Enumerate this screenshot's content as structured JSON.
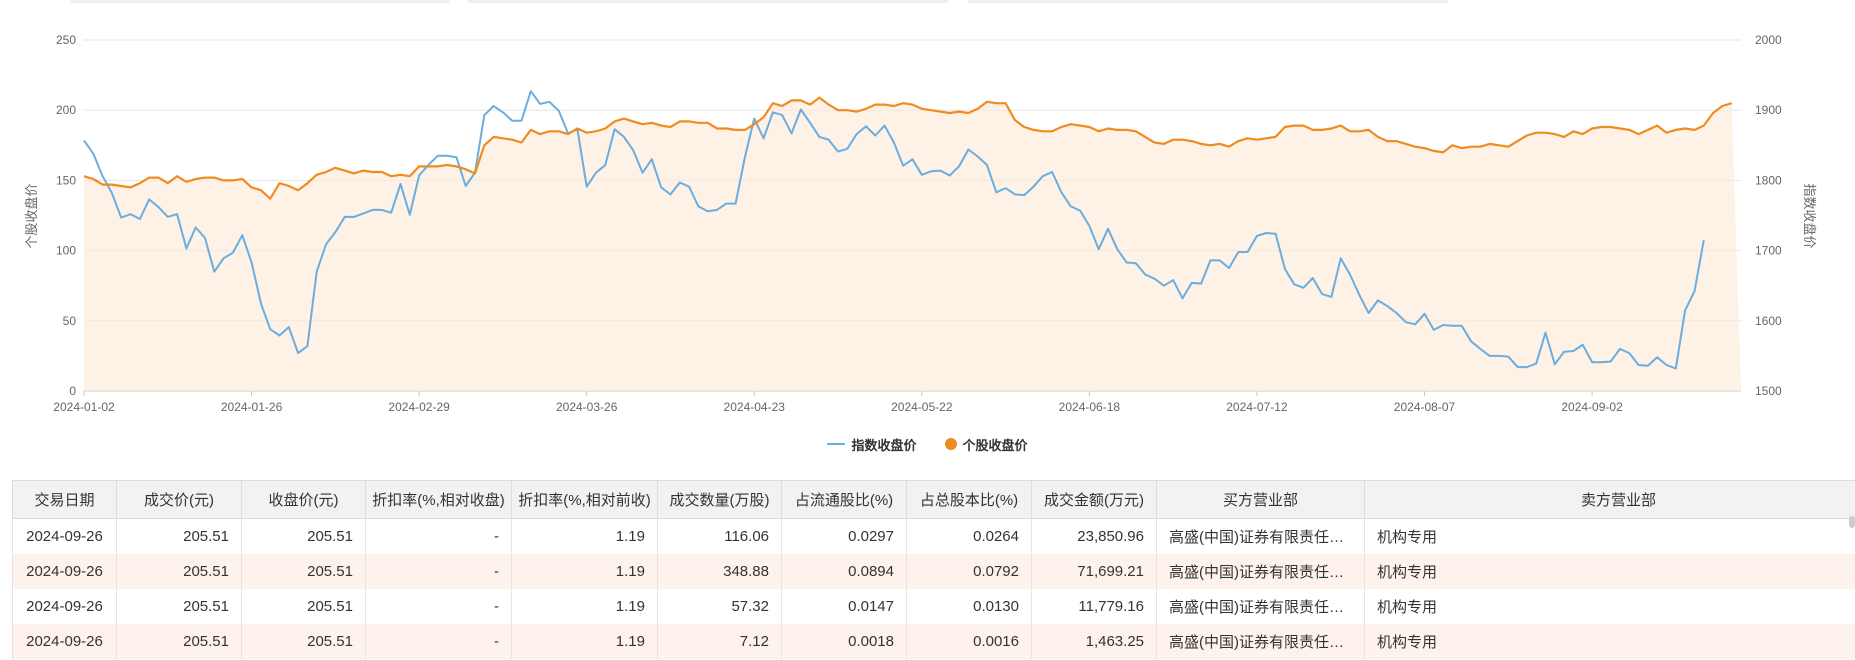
{
  "chart_data": {
    "type": "line",
    "x_dates": [
      "2024-01-02",
      "2024-01-03",
      "2024-01-04",
      "2024-01-05",
      "2024-01-08",
      "2024-01-09",
      "2024-01-10",
      "2024-01-11",
      "2024-01-12",
      "2024-01-15",
      "2024-01-16",
      "2024-01-17",
      "2024-01-18",
      "2024-01-19",
      "2024-01-22",
      "2024-01-23",
      "2024-01-24",
      "2024-01-25",
      "2024-01-26",
      "2024-01-29",
      "2024-01-30",
      "2024-01-31",
      "2024-02-01",
      "2024-02-02",
      "2024-02-05",
      "2024-02-06",
      "2024-02-07",
      "2024-02-08",
      "2024-02-19",
      "2024-02-20",
      "2024-02-21",
      "2024-02-22",
      "2024-02-23",
      "2024-02-26",
      "2024-02-27",
      "2024-02-28",
      "2024-02-29",
      "2024-03-01",
      "2024-03-04",
      "2024-03-05",
      "2024-03-06",
      "2024-03-07",
      "2024-03-08",
      "2024-03-11",
      "2024-03-12",
      "2024-03-13",
      "2024-03-14",
      "2024-03-15",
      "2024-03-18",
      "2024-03-19",
      "2024-03-20",
      "2024-03-21",
      "2024-03-22",
      "2024-03-25",
      "2024-03-26",
      "2024-03-27",
      "2024-03-28",
      "2024-03-29",
      "2024-04-01",
      "2024-04-02",
      "2024-04-03",
      "2024-04-08",
      "2024-04-09",
      "2024-04-10",
      "2024-04-11",
      "2024-04-12",
      "2024-04-15",
      "2024-04-16",
      "2024-04-17",
      "2024-04-18",
      "2024-04-19",
      "2024-04-22",
      "2024-04-23",
      "2024-04-24",
      "2024-04-25",
      "2024-04-26",
      "2024-04-29",
      "2024-04-30",
      "2024-05-06",
      "2024-05-07",
      "2024-05-08",
      "2024-05-09",
      "2024-05-10",
      "2024-05-13",
      "2024-05-14",
      "2024-05-15",
      "2024-05-16",
      "2024-05-17",
      "2024-05-20",
      "2024-05-21",
      "2024-05-22",
      "2024-05-23",
      "2024-05-24",
      "2024-05-27",
      "2024-05-28",
      "2024-05-29",
      "2024-05-30",
      "2024-05-31",
      "2024-06-03",
      "2024-06-04",
      "2024-06-05",
      "2024-06-06",
      "2024-06-07",
      "2024-06-11",
      "2024-06-12",
      "2024-06-13",
      "2024-06-14",
      "2024-06-17",
      "2024-06-18",
      "2024-06-19",
      "2024-06-20",
      "2024-06-21",
      "2024-06-24",
      "2024-06-25",
      "2024-06-26",
      "2024-06-27",
      "2024-06-28",
      "2024-07-01",
      "2024-07-02",
      "2024-07-03",
      "2024-07-04",
      "2024-07-05",
      "2024-07-08",
      "2024-07-09",
      "2024-07-10",
      "2024-07-11",
      "2024-07-12",
      "2024-07-15",
      "2024-07-16",
      "2024-07-17",
      "2024-07-18",
      "2024-07-19",
      "2024-07-22",
      "2024-07-23",
      "2024-07-24",
      "2024-07-25",
      "2024-07-26",
      "2024-07-29",
      "2024-07-30",
      "2024-07-31",
      "2024-08-01",
      "2024-08-02",
      "2024-08-05",
      "2024-08-06",
      "2024-08-07",
      "2024-08-08",
      "2024-08-09",
      "2024-08-12",
      "2024-08-13",
      "2024-08-14",
      "2024-08-15",
      "2024-08-16",
      "2024-08-19",
      "2024-08-20",
      "2024-08-21",
      "2024-08-22",
      "2024-08-23",
      "2024-08-26",
      "2024-08-27",
      "2024-08-28",
      "2024-08-29",
      "2024-08-30",
      "2024-09-02",
      "2024-09-03",
      "2024-09-04",
      "2024-09-05",
      "2024-09-06",
      "2024-09-09",
      "2024-09-10",
      "2024-09-11",
      "2024-09-12",
      "2024-09-13",
      "2024-09-18",
      "2024-09-19",
      "2024-09-20",
      "2024-09-23",
      "2024-09-24",
      "2024-09-25",
      "2024-09-26"
    ],
    "x_tick_labels": [
      "2024-01-02",
      "2024-01-26",
      "2024-02-29",
      "2024-03-26",
      "2024-04-23",
      "2024-05-22",
      "2024-06-18",
      "2024-07-12",
      "2024-08-07",
      "2024-09-02"
    ],
    "x_tick_indices": [
      0,
      18,
      36,
      54,
      72,
      90,
      108,
      126,
      144,
      162
    ],
    "y_left": {
      "label": "个股收盘价",
      "ticks": [
        0,
        50,
        100,
        150,
        200,
        250
      ],
      "range": [
        0,
        250
      ]
    },
    "y_right": {
      "label": "指数收盘价",
      "ticks": [
        1500,
        1600,
        1700,
        1800,
        1900,
        2000
      ],
      "range": [
        1500,
        2000
      ]
    },
    "series": [
      {
        "name": "指数收盘价",
        "axis": "right",
        "color": "#6aaee0",
        "values": [
          1857,
          1838,
          1806,
          1782,
          1747,
          1752,
          1745,
          1773,
          1762,
          1748,
          1752,
          1703,
          1733,
          1718,
          1670,
          1689,
          1697,
          1722,
          1683,
          1625,
          1588,
          1579,
          1591,
          1554,
          1564,
          1670,
          1709,
          1726,
          1748,
          1748,
          1753,
          1758,
          1758,
          1754,
          1795,
          1751,
          1807,
          1822,
          1835,
          1835,
          1833,
          1792,
          1811,
          1893,
          1906,
          1897,
          1885,
          1885,
          1927,
          1909,
          1912,
          1899,
          1867,
          1873,
          1791,
          1811,
          1822,
          1873,
          1862,
          1843,
          1811,
          1830,
          1790,
          1780,
          1797,
          1791,
          1763,
          1756,
          1758,
          1767,
          1767,
          1833,
          1888,
          1860,
          1897,
          1893,
          1867,
          1901,
          1882,
          1862,
          1858,
          1841,
          1845,
          1866,
          1877,
          1864,
          1878,
          1854,
          1821,
          1830,
          1808,
          1813,
          1814,
          1807,
          1820,
          1844,
          1834,
          1822,
          1783,
          1789,
          1780,
          1779,
          1791,
          1806,
          1812,
          1783,
          1763,
          1757,
          1735,
          1702,
          1731,
          1702,
          1683,
          1682,
          1666,
          1660,
          1650,
          1658,
          1632,
          1654,
          1653,
          1686,
          1686,
          1675,
          1698,
          1698,
          1721,
          1725,
          1724,
          1674,
          1652,
          1647,
          1661,
          1638,
          1634,
          1689,
          1666,
          1637,
          1611,
          1629,
          1621,
          1611,
          1598,
          1595,
          1610,
          1587,
          1594,
          1593,
          1593,
          1571,
          1560,
          1550,
          1550,
          1549,
          1534,
          1534,
          1539,
          1583,
          1538,
          1556,
          1557,
          1566,
          1541,
          1541,
          1542,
          1560,
          1554,
          1537,
          1536,
          1548,
          1537,
          1532,
          1615,
          1642,
          1715
        ]
      },
      {
        "name": "个股收盘价",
        "axis": "left",
        "color": "#f08b21",
        "values": [
          153,
          151,
          147,
          147,
          146,
          145,
          148,
          152,
          152,
          148,
          153,
          149,
          151,
          152,
          152,
          150,
          150,
          151,
          145,
          143,
          137,
          148,
          146,
          143,
          148,
          154,
          156,
          159,
          157,
          155,
          157,
          156,
          156,
          153,
          154,
          153,
          160,
          160,
          160,
          161,
          160,
          158,
          155,
          175,
          181,
          180,
          179,
          177,
          186,
          183,
          185,
          185,
          183,
          187,
          184,
          185,
          187,
          192,
          194,
          192,
          190,
          191,
          189,
          188,
          192,
          192,
          191,
          191,
          187,
          187,
          186,
          186,
          190,
          195,
          205,
          203,
          207,
          207,
          204,
          209,
          204,
          200,
          200,
          199,
          201,
          204,
          204,
          203,
          205,
          204,
          201,
          200,
          199,
          198,
          199,
          198,
          201,
          206,
          205,
          205,
          193,
          188,
          186,
          185,
          185,
          188,
          190,
          189,
          188,
          185,
          187,
          186,
          186,
          185,
          181,
          177,
          176,
          179,
          179,
          178,
          176,
          175,
          176,
          174,
          178,
          180,
          179,
          180,
          181,
          188,
          189,
          189,
          186,
          186,
          187,
          189,
          185,
          185,
          186,
          181,
          178,
          178,
          176,
          174,
          173,
          171,
          170,
          175,
          173,
          174,
          174,
          176,
          175,
          174,
          178,
          182,
          184,
          184,
          183,
          181,
          185,
          183,
          187,
          188,
          188,
          187,
          186,
          183,
          186,
          189,
          184,
          186,
          187,
          186,
          189,
          198,
          203,
          205
        ]
      }
    ],
    "legend_position": "bottom"
  },
  "table": {
    "headers": [
      "交易日期",
      "成交价(元)",
      "收盘价(元)",
      "折扣率(%,相对收盘)",
      "折扣率(%,相对前收)",
      "成交数量(万股)",
      "占流通股比(%)",
      "占总股本比(%)",
      "成交金额(万元)",
      "买方营业部",
      "卖方营业部"
    ],
    "rows": [
      [
        "2024-09-26",
        "205.51",
        "205.51",
        "-",
        "1.19",
        "116.06",
        "0.0297",
        "0.0264",
        "23,850.96",
        "高盛(中国)证券有限责任公司...",
        "机构专用"
      ],
      [
        "2024-09-26",
        "205.51",
        "205.51",
        "-",
        "1.19",
        "348.88",
        "0.0894",
        "0.0792",
        "71,699.21",
        "高盛(中国)证券有限责任公司...",
        "机构专用"
      ],
      [
        "2024-09-26",
        "205.51",
        "205.51",
        "-",
        "1.19",
        "57.32",
        "0.0147",
        "0.0130",
        "11,779.16",
        "高盛(中国)证券有限责任公司...",
        "机构专用"
      ],
      [
        "2024-09-26",
        "205.51",
        "205.51",
        "-",
        "1.19",
        "7.12",
        "0.0018",
        "0.0016",
        "1,463.25",
        "高盛(中国)证券有限责任公司...",
        "机构专用"
      ]
    ]
  }
}
